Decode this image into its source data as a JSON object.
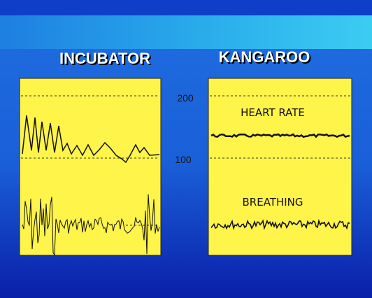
{
  "panels": [
    {
      "title": "INCUBATOR"
    },
    {
      "title": "KANGAROO",
      "labels": [
        "HEART RATE",
        "BREATHING"
      ]
    }
  ],
  "scale_labels": [
    "200",
    "100"
  ]
}
